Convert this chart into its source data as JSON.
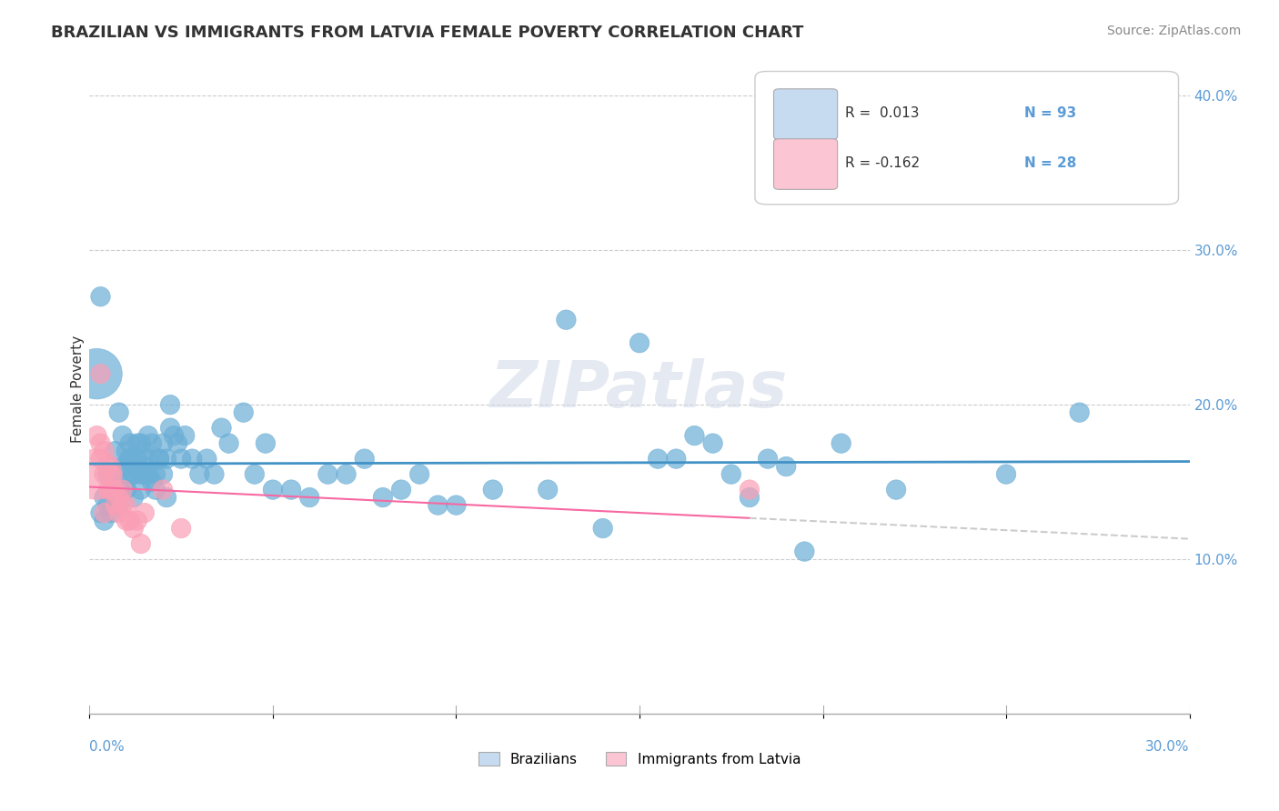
{
  "title": "BRAZILIAN VS IMMIGRANTS FROM LATVIA FEMALE POVERTY CORRELATION CHART",
  "source": "Source: ZipAtlas.com",
  "ylabel": "Female Poverty",
  "yticks": [
    0.0,
    0.1,
    0.2,
    0.3,
    0.4
  ],
  "ytick_labels": [
    "",
    "10.0%",
    "20.0%",
    "30.0%",
    "40.0%"
  ],
  "xlim": [
    0.0,
    0.3
  ],
  "ylim": [
    0.0,
    0.42
  ],
  "watermark": "ZIPatlas",
  "blue_color": "#6baed6",
  "pink_color": "#fa9fb5",
  "blue_fill": "#c6dbef",
  "pink_fill": "#fcc5d4",
  "trend_blue": "#4292c6",
  "trend_pink": "#f768a1",
  "blue_scatter_x": [
    0.005,
    0.007,
    0.008,
    0.009,
    0.01,
    0.01,
    0.011,
    0.011,
    0.012,
    0.012,
    0.013,
    0.013,
    0.014,
    0.014,
    0.015,
    0.015,
    0.016,
    0.016,
    0.017,
    0.018,
    0.019,
    0.02,
    0.021,
    0.022,
    0.022,
    0.023,
    0.024,
    0.025,
    0.026,
    0.028,
    0.03,
    0.032,
    0.034,
    0.036,
    0.038,
    0.042,
    0.045,
    0.048,
    0.05,
    0.055,
    0.06,
    0.065,
    0.07,
    0.075,
    0.08,
    0.085,
    0.09,
    0.095,
    0.1,
    0.11,
    0.003,
    0.004,
    0.004,
    0.005,
    0.006,
    0.006,
    0.007,
    0.008,
    0.008,
    0.009,
    0.009,
    0.01,
    0.01,
    0.011,
    0.012,
    0.013,
    0.014,
    0.015,
    0.016,
    0.017,
    0.018,
    0.019,
    0.02,
    0.021,
    0.125,
    0.002,
    0.003,
    0.13,
    0.14,
    0.15,
    0.16,
    0.17,
    0.18,
    0.19,
    0.22,
    0.25,
    0.27,
    0.155,
    0.165,
    0.175,
    0.185,
    0.195,
    0.205
  ],
  "blue_scatter_y": [
    0.155,
    0.17,
    0.195,
    0.18,
    0.16,
    0.145,
    0.175,
    0.165,
    0.155,
    0.14,
    0.16,
    0.175,
    0.155,
    0.145,
    0.16,
    0.17,
    0.165,
    0.155,
    0.15,
    0.155,
    0.165,
    0.175,
    0.165,
    0.2,
    0.185,
    0.18,
    0.175,
    0.165,
    0.18,
    0.165,
    0.155,
    0.165,
    0.155,
    0.185,
    0.175,
    0.195,
    0.155,
    0.175,
    0.145,
    0.145,
    0.14,
    0.155,
    0.155,
    0.165,
    0.14,
    0.145,
    0.155,
    0.135,
    0.135,
    0.145,
    0.13,
    0.125,
    0.14,
    0.135,
    0.13,
    0.145,
    0.14,
    0.135,
    0.155,
    0.145,
    0.16,
    0.17,
    0.15,
    0.165,
    0.155,
    0.165,
    0.175,
    0.155,
    0.18,
    0.175,
    0.145,
    0.165,
    0.155,
    0.14,
    0.145,
    0.22,
    0.27,
    0.255,
    0.12,
    0.24,
    0.165,
    0.175,
    0.14,
    0.16,
    0.145,
    0.155,
    0.195,
    0.165,
    0.18,
    0.155,
    0.165,
    0.105,
    0.175
  ],
  "blue_scatter_size": [
    30,
    30,
    30,
    30,
    30,
    30,
    30,
    30,
    30,
    30,
    30,
    30,
    30,
    30,
    30,
    30,
    30,
    30,
    30,
    30,
    30,
    30,
    30,
    30,
    30,
    30,
    30,
    30,
    30,
    30,
    30,
    30,
    30,
    30,
    30,
    30,
    30,
    30,
    30,
    30,
    30,
    30,
    30,
    30,
    30,
    30,
    30,
    30,
    30,
    30,
    30,
    30,
    30,
    30,
    30,
    30,
    30,
    30,
    30,
    30,
    30,
    30,
    30,
    30,
    30,
    30,
    30,
    30,
    30,
    30,
    30,
    30,
    30,
    30,
    30,
    200,
    30,
    30,
    30,
    30,
    30,
    30,
    30,
    30,
    30,
    30,
    30,
    30,
    30,
    30,
    30,
    30,
    30
  ],
  "pink_scatter_x": [
    0.002,
    0.003,
    0.003,
    0.004,
    0.004,
    0.005,
    0.005,
    0.006,
    0.006,
    0.007,
    0.007,
    0.008,
    0.008,
    0.009,
    0.009,
    0.01,
    0.01,
    0.011,
    0.012,
    0.013,
    0.014,
    0.015,
    0.02,
    0.025,
    0.18,
    0.002,
    0.003,
    0.004
  ],
  "pink_scatter_y": [
    0.155,
    0.22,
    0.165,
    0.155,
    0.17,
    0.145,
    0.16,
    0.145,
    0.155,
    0.135,
    0.145,
    0.14,
    0.13,
    0.145,
    0.135,
    0.125,
    0.135,
    0.125,
    0.12,
    0.125,
    0.11,
    0.13,
    0.145,
    0.12,
    0.145,
    0.18,
    0.175,
    0.13
  ],
  "pink_scatter_size": [
    200,
    30,
    30,
    30,
    30,
    30,
    30,
    30,
    30,
    30,
    30,
    30,
    30,
    30,
    30,
    30,
    30,
    30,
    30,
    30,
    30,
    30,
    30,
    30,
    30,
    30,
    30,
    30
  ]
}
